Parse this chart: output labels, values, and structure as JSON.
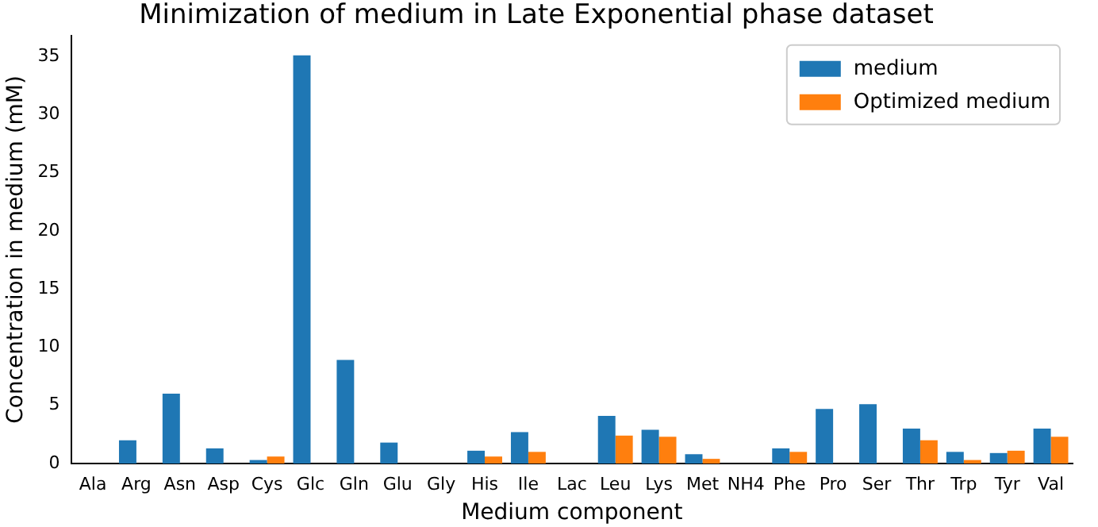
{
  "chart_data": {
    "type": "bar",
    "title": "Minimization of medium in Late Exponential phase dataset",
    "xlabel": "Medium component",
    "ylabel": "Concentration in medium (mM)",
    "categories": [
      "Ala",
      "Arg",
      "Asn",
      "Asp",
      "Cys",
      "Glc",
      "Gln",
      "Glu",
      "Gly",
      "His",
      "Ile",
      "Lac",
      "Leu",
      "Lys",
      "Met",
      "NH4",
      "Phe",
      "Pro",
      "Ser",
      "Thr",
      "Trp",
      "Tyr",
      "Val"
    ],
    "series": [
      {
        "name": "medium",
        "color": "#1f77b4",
        "values": [
          0,
          2.0,
          6.0,
          1.3,
          0.3,
          35.1,
          8.9,
          1.8,
          0,
          1.1,
          2.7,
          0,
          4.1,
          2.9,
          0.8,
          0,
          1.3,
          4.7,
          5.1,
          3.0,
          1.0,
          0.9,
          3.0
        ]
      },
      {
        "name": "Optimized medium",
        "color": "#ff7f0e",
        "values": [
          0,
          0,
          0,
          0,
          0.6,
          0,
          0,
          0,
          0,
          0.6,
          1.0,
          0,
          2.4,
          2.3,
          0.4,
          0,
          1.0,
          0,
          0,
          2.0,
          0.3,
          1.1,
          2.3
        ]
      }
    ],
    "ylim": [
      0,
      36.8
    ],
    "yticks": [
      0,
      5,
      10,
      15,
      20,
      25,
      30,
      35
    ],
    "grid": false,
    "legend": "top right"
  }
}
